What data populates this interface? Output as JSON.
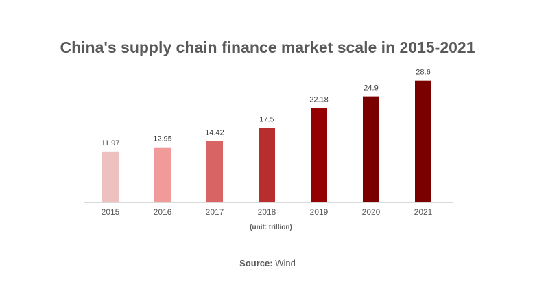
{
  "chart_data": {
    "type": "bar",
    "title": "China's supply chain finance market scale in 2015-2021",
    "categories": [
      "2015",
      "2016",
      "2017",
      "2018",
      "2019",
      "2020",
      "2021"
    ],
    "values": [
      11.97,
      12.95,
      14.42,
      17.5,
      22.18,
      24.9,
      28.6
    ],
    "data_labels": [
      "11.97",
      "12.95",
      "14.42",
      "17.5",
      "22.18",
      "24.9",
      "28.6"
    ],
    "colors": [
      "#eec1c1",
      "#f09a9a",
      "#d96464",
      "#b82e2e",
      "#940000",
      "#7a0000",
      "#7a0000"
    ],
    "unit_label": "(unit: trillion)",
    "ylim": [
      0,
      30
    ],
    "grid": false,
    "legend": "none"
  },
  "source": {
    "label": "Source:",
    "value": "Wind"
  }
}
